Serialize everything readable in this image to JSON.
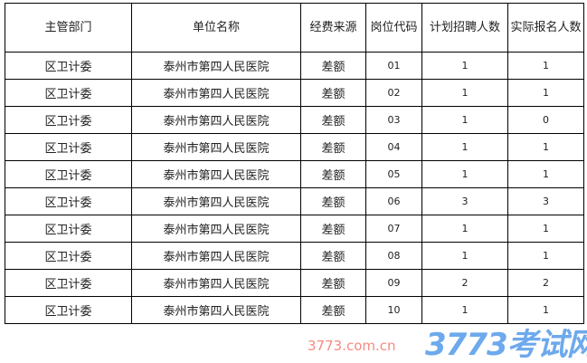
{
  "headers": [
    "主管部门",
    "单位名称",
    "经费来源",
    "岗位代码",
    "计划招聘人数",
    "实际报名人数"
  ],
  "rows": [
    [
      "区卫计委",
      "泰州市第四人民医院",
      "差额",
      "01",
      "1",
      "1"
    ],
    [
      "区卫计委",
      "泰州市第四人民医院",
      "差额",
      "02",
      "1",
      "1"
    ],
    [
      "区卫计委",
      "泰州市第四人民医院",
      "差额",
      "03",
      "1",
      "0"
    ],
    [
      "区卫计委",
      "泰州市第四人民医院",
      "差额",
      "04",
      "1",
      "1"
    ],
    [
      "区卫计委",
      "泰州市第四人民医院",
      "差额",
      "05",
      "1",
      "1"
    ],
    [
      "区卫计委",
      "泰州市第四人民医院",
      "差额",
      "06",
      "3",
      "3"
    ],
    [
      "区卫计委",
      "泰州市第四人民医院",
      "差额",
      "07",
      "1",
      "1"
    ],
    [
      "区卫计委",
      "泰州市第四人民医院",
      "差额",
      "08",
      "1",
      "1"
    ],
    [
      "区卫计委",
      "泰州市第四人民医院",
      "差额",
      "09",
      "2",
      "2"
    ],
    [
      "区卫计委",
      "泰州市第四人民医院",
      "差额",
      "10",
      "1",
      "1"
    ]
  ],
  "watermark": {
    "logo": "3773考试网",
    "url": "3773.com.cn"
  }
}
